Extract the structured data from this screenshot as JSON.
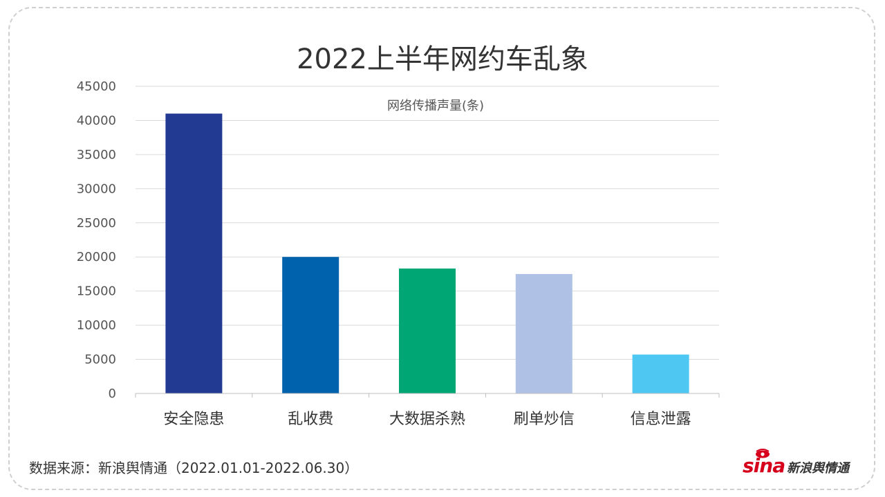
{
  "chart_data": {
    "type": "bar",
    "title": "2022上半年网约车乱象",
    "series_name": "网络传播声量(条)",
    "categories": [
      "安全隐患",
      "乱收费",
      "大数据杀熟",
      "刷单炒信",
      "信息泄露"
    ],
    "values": [
      41000,
      20000,
      18300,
      17500,
      5700
    ],
    "colors": [
      "#233a92",
      "#0061ac",
      "#00a775",
      "#afc1e5",
      "#4ec8f3"
    ],
    "ylim": [
      0,
      45000
    ],
    "yticks": [
      0,
      5000,
      10000,
      15000,
      20000,
      25000,
      30000,
      35000,
      40000,
      45000
    ],
    "grid": true,
    "legend": "top-center"
  },
  "source": "数据来源：新浪舆情通（2022.01.01-2022.06.30）",
  "logo": {
    "text": "sina",
    "name": "新浪舆情通",
    "color": "#d6001c"
  }
}
